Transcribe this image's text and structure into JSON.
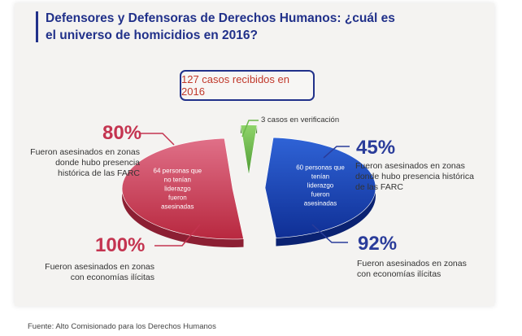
{
  "chart_data": {
    "type": "pie",
    "title": "Defensores y Defensoras de Derechos Humanos: ¿cuál es el universo de homicidios en 2016?",
    "total_label": "127 casos recibidos en 2016",
    "slices": [
      {
        "label": "64 personas que no tenían liderazgo fueron asesinadas",
        "value": 64,
        "color": "#c43450"
      },
      {
        "label": "3 casos en verificación",
        "value": 3,
        "color": "#6cb84a"
      },
      {
        "label": "60 personas que tenían liderazgo fueron asesinadas",
        "value": 60,
        "color": "#1a3fb0"
      }
    ],
    "annotations": [
      {
        "pct": "80%",
        "text": "Fueron asesinados en zonas donde hubo presencia histórica de las FARC"
      },
      {
        "pct": "100%",
        "text": "Fueron asesinados en zonas con economías ilícitas"
      },
      {
        "pct": "45%",
        "text": "Fueron asesinados en zonas donde hubo presencia histórica de las FARC"
      },
      {
        "pct": "92%",
        "text": "Fueron asesinados en zonas con economías ilícitas"
      }
    ]
  },
  "colors": {
    "title": "#21318a",
    "red": "#c43450",
    "blue": "#2a3c9a",
    "green": "#6cb84a"
  },
  "source": "Fuente: Alto Comisionado para los Derechos Humanos"
}
